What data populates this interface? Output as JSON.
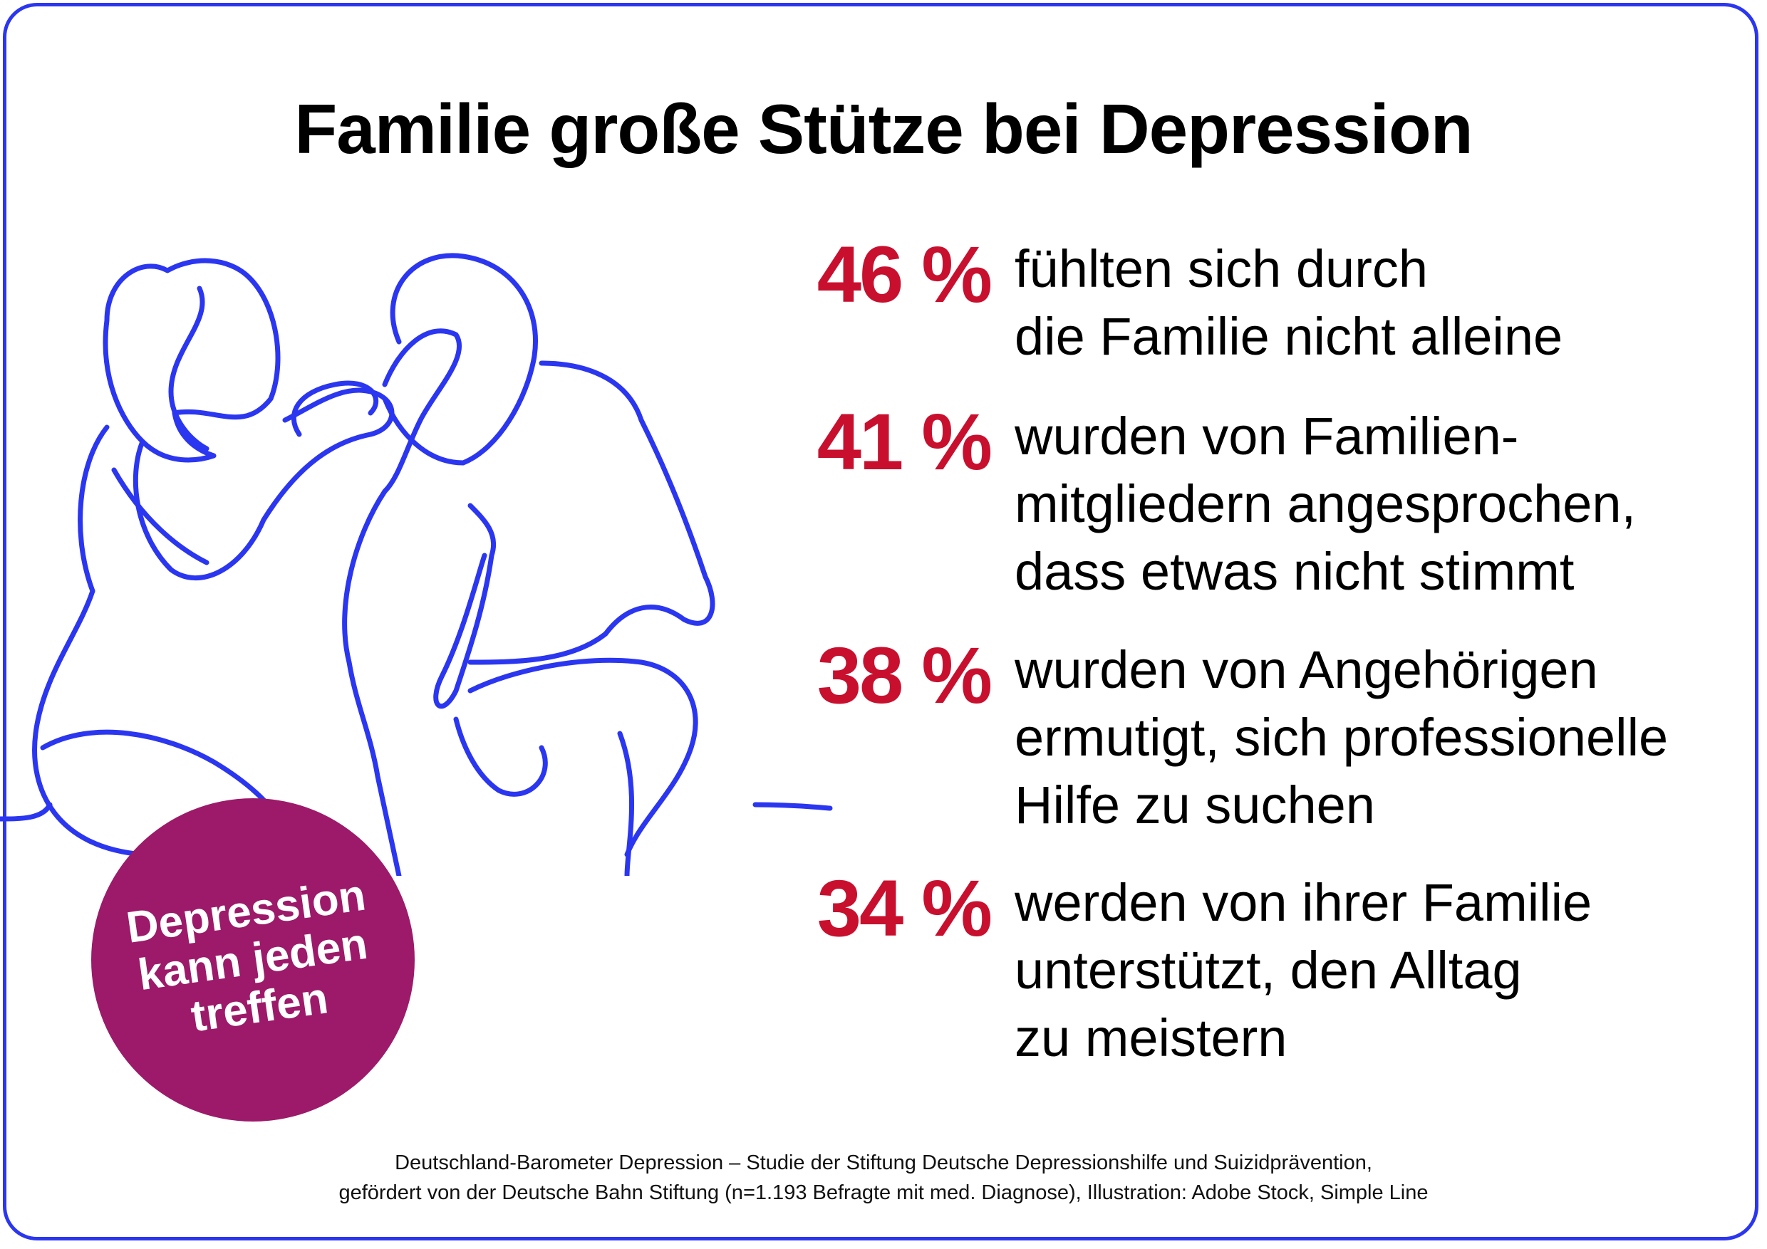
{
  "title": "Familie große Stütze bei Depression",
  "stats": [
    {
      "percent": "46 %",
      "lines": [
        "fühlten sich durch",
        "die Familie nicht alleine"
      ]
    },
    {
      "percent": "41 %",
      "lines": [
        "wurden von Familien-",
        "mitgliedern angesprochen,",
        "dass etwas nicht stimmt"
      ]
    },
    {
      "percent": "38 %",
      "lines": [
        "wurden von Angehörigen",
        "ermutigt, sich professionelle",
        "Hilfe zu suchen"
      ]
    },
    {
      "percent": "34 %",
      "lines": [
        "werden von ihrer Familie",
        "unterstützt, den Alltag",
        "zu meistern"
      ]
    }
  ],
  "badge": {
    "lines": [
      "Depression",
      "kann jeden",
      "treffen"
    ]
  },
  "footer": {
    "line1": "Deutschland-Barometer Depression – Studie der Stiftung Deutsche Depressionshilfe und Suizidprävention,",
    "line2": "gefördert von der Deutsche Bahn Stiftung (n=1.193 Befragte mit med. Diagnose), Illustration: Adobe Stock, Simple Line"
  },
  "colors": {
    "border": "#2b36f0",
    "percent": "#c8102e",
    "badge": "#9c1a69",
    "line_art": "#2b36f0"
  }
}
